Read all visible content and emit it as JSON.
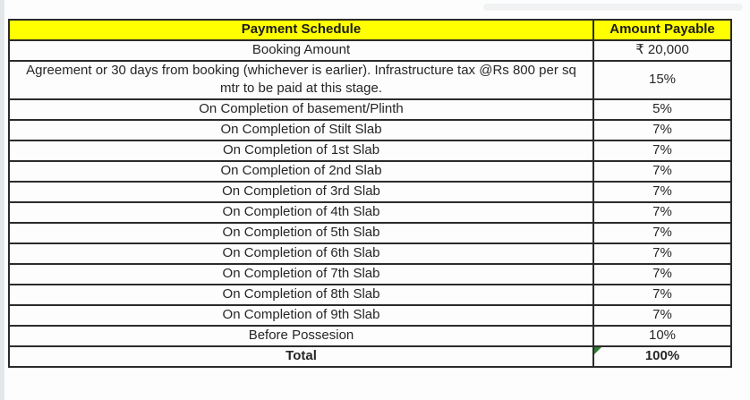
{
  "table": {
    "headers": {
      "stage": "Payment Schedule",
      "amount": "Amount Payable"
    },
    "rows": [
      {
        "stage": "Booking Amount",
        "amount": "₹ 20,000"
      },
      {
        "stage": "Agreement or 30 days from booking (whichever is earlier). Infrastructure tax @Rs 800 per sq mtr to be paid at this stage.",
        "amount": "15%"
      },
      {
        "stage": "On Completion of basement/Plinth",
        "amount": "5%"
      },
      {
        "stage": "On Completion of Stilt Slab",
        "amount": "7%"
      },
      {
        "stage": "On Completion of 1st Slab",
        "amount": "7%"
      },
      {
        "stage": "On Completion of 2nd Slab",
        "amount": "7%"
      },
      {
        "stage": "On Completion of 3rd Slab",
        "amount": "7%"
      },
      {
        "stage": "On Completion of 4th Slab",
        "amount": "7%"
      },
      {
        "stage": "On Completion of 5th Slab",
        "amount": "7%"
      },
      {
        "stage": "On Completion of 6th Slab",
        "amount": "7%"
      },
      {
        "stage": "On Completion of 7th Slab",
        "amount": "7%"
      },
      {
        "stage": "On Completion of 8th Slab",
        "amount": "7%"
      },
      {
        "stage": "On Completion of 9th Slab",
        "amount": "7%"
      },
      {
        "stage": "Before Possesion",
        "amount": "10%"
      },
      {
        "stage": "Total",
        "amount": "100%"
      }
    ]
  },
  "colors": {
    "header_bg": "#ffff00",
    "border": "#2b2b2b",
    "text": "#262626",
    "left_strip": "#e4e7ea",
    "error_indicator_green": "#2e7d32"
  }
}
